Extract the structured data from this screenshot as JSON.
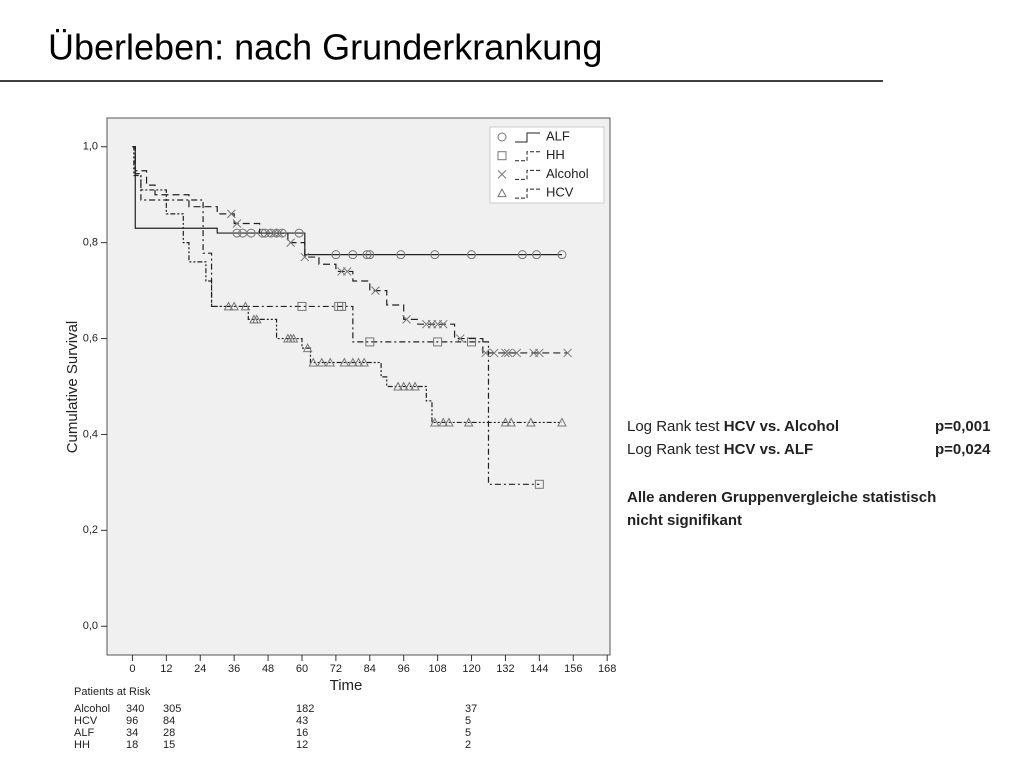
{
  "header": {
    "title": "Überleben: nach Grunderkrankung"
  },
  "chart_data": {
    "type": "step",
    "x_label": "Time",
    "y_label": "Cumulative Survival",
    "xlim": [
      -9,
      169
    ],
    "ylim": [
      -0.06,
      1.06
    ],
    "xticks": [
      0,
      12,
      24,
      36,
      48,
      60,
      72,
      84,
      96,
      108,
      120,
      132,
      144,
      156,
      168
    ],
    "yticks": [
      {
        "value": 0,
        "label": "0,0"
      },
      {
        "value": 0.2,
        "label": "0,2"
      },
      {
        "value": 0.4,
        "label": "0,4"
      },
      {
        "value": 0.6,
        "label": "0,6"
      },
      {
        "value": 0.8,
        "label": "0,8"
      },
      {
        "value": 1,
        "label": "1,0"
      }
    ],
    "legend": "top-right",
    "series": [
      {
        "name": "ALF",
        "color": "#222222",
        "dash": "solid",
        "marker": "circle",
        "x": [
          0,
          1,
          30,
          61,
          152
        ],
        "values": [
          1,
          0.83,
          0.82,
          0.775,
          0.775
        ],
        "censored": [
          37,
          39,
          42,
          46,
          47,
          49,
          51,
          53,
          59,
          72,
          78,
          83,
          84,
          95,
          107,
          120,
          138,
          143,
          152
        ]
      },
      {
        "name": "HH",
        "color": "#222222",
        "dash": "6 3 2 3",
        "marker": "square",
        "x": [
          0,
          1,
          3,
          25,
          28,
          78,
          126,
          144
        ],
        "values": [
          1,
          0.944,
          0.889,
          0.778,
          0.667,
          0.593,
          0.296,
          0.296
        ],
        "censored": [
          60,
          73,
          74,
          84,
          108,
          120,
          144
        ]
      },
      {
        "name": "Alcohol",
        "color": "#222222",
        "dash": "7 4",
        "marker": "cross",
        "x": [
          0,
          1,
          5,
          8,
          20,
          30,
          36,
          45,
          55,
          61,
          66,
          72,
          78,
          84,
          90,
          96,
          101,
          114,
          124,
          154
        ],
        "values": [
          1,
          0.95,
          0.92,
          0.9,
          0.875,
          0.86,
          0.84,
          0.82,
          0.8,
          0.77,
          0.755,
          0.74,
          0.72,
          0.7,
          0.67,
          0.64,
          0.63,
          0.6,
          0.57,
          0.57
        ],
        "censored": [
          35,
          37,
          50,
          52,
          56,
          61,
          74,
          76,
          86,
          97,
          104,
          106,
          108,
          110,
          116,
          125,
          128,
          132,
          133,
          136,
          142,
          144,
          154
        ]
      },
      {
        "name": "HCV",
        "color": "#222222",
        "dash": "5 2 2 2 2 2",
        "marker": "triangle",
        "x": [
          0,
          0.5,
          3,
          12,
          18,
          20,
          26,
          28,
          41,
          51,
          60,
          63,
          88,
          90,
          104,
          106,
          152
        ],
        "values": [
          1,
          0.94,
          0.91,
          0.86,
          0.8,
          0.76,
          0.72,
          0.667,
          0.64,
          0.6,
          0.58,
          0.55,
          0.52,
          0.5,
          0.47,
          0.425,
          0.425
        ],
        "censored": [
          34,
          36,
          40,
          43,
          44,
          55,
          56,
          57,
          62,
          64,
          67,
          70,
          75,
          78,
          80,
          82,
          94,
          96,
          98,
          100,
          107,
          110,
          112,
          119,
          132,
          134,
          141,
          152
        ]
      }
    ]
  },
  "risk_table": {
    "title": "Patients at Risk",
    "rows": [
      [
        "Alcohol",
        "340",
        "305",
        "182",
        "37"
      ],
      [
        "HCV",
        "96",
        "84",
        "43",
        "5"
      ],
      [
        "ALF",
        "34",
        "28",
        "16",
        "5"
      ],
      [
        "HH",
        "18",
        "15",
        "12",
        "2"
      ]
    ]
  },
  "notes": {
    "tests": [
      {
        "prefix": "Log Rank test ",
        "comparison": "HCV vs. Alcohol",
        "p": "p=0,001"
      },
      {
        "prefix": "Log Rank test ",
        "comparison": "HCV vs. ALF",
        "p": "p=0,024"
      }
    ],
    "conclusion": [
      "Alle anderen Gruppenvergleiche statistisch",
      "nicht signifikant"
    ]
  }
}
